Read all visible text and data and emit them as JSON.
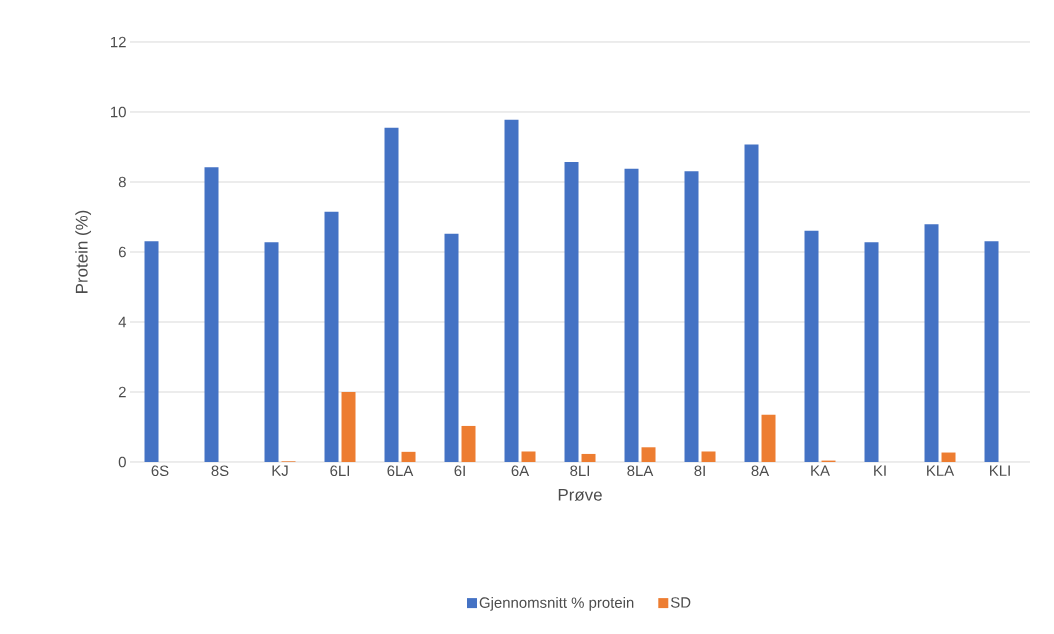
{
  "chart_data": {
    "type": "bar",
    "xlabel": "Prøve",
    "ylabel": "Protein (%)",
    "categories": [
      "6S",
      "8S",
      "KJ",
      "6LI",
      "6LA",
      "6I",
      "6A",
      "8LI",
      "8LA",
      "8I",
      "8A",
      "KA",
      "KI",
      "KLA",
      "KLI"
    ],
    "series": [
      {
        "name": "Gjennomsnitt % protein",
        "color": "#4472c4",
        "values": [
          6.31,
          8.42,
          6.28,
          7.15,
          9.55,
          6.52,
          9.78,
          8.57,
          8.38,
          8.31,
          9.07,
          6.61,
          6.28,
          6.79,
          6.31
        ]
      },
      {
        "name": "SD",
        "color": "#ed7d31",
        "values": [
          null,
          null,
          0.02,
          2.0,
          0.29,
          1.03,
          0.3,
          0.23,
          0.42,
          0.3,
          1.35,
          0.04,
          null,
          0.27,
          null
        ]
      }
    ],
    "ylim": [
      0,
      12
    ],
    "yticks": [
      0,
      2,
      4,
      6,
      8,
      10,
      12
    ],
    "grid": "y",
    "legend": "bottom"
  }
}
